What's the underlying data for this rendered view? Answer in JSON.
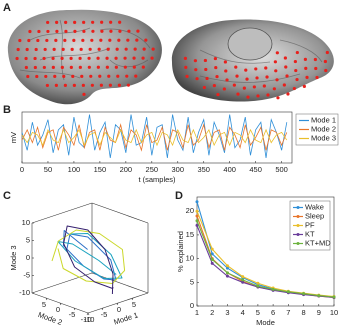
{
  "chart_data": [
    {
      "type": "image",
      "label": "A"
    },
    {
      "type": "line",
      "label": "B",
      "xlabel": "t (samples)",
      "ylabel": "mV",
      "x": [
        0,
        10,
        20,
        30,
        40,
        50,
        60,
        70,
        80,
        90,
        100,
        110,
        120,
        130,
        140,
        150,
        160,
        170,
        180,
        190,
        200,
        210,
        220,
        230,
        240,
        250,
        260,
        270,
        280,
        290,
        300,
        310,
        320,
        330,
        340,
        350,
        360,
        370,
        380,
        390,
        400,
        410,
        420,
        430,
        440,
        450,
        460,
        470,
        480,
        490,
        500,
        510
      ],
      "xlim": [
        0,
        520
      ],
      "xticks": [
        0,
        50,
        100,
        150,
        200,
        250,
        300,
        350,
        400,
        450,
        500
      ],
      "ylim": [
        -1,
        1
      ],
      "legend": "right",
      "series": [
        {
          "name": "Mode 1",
          "color": "#2f8fd8",
          "values": [
            0.2,
            -0.5,
            0.6,
            -0.3,
            0.1,
            0.7,
            -0.6,
            0.3,
            0.5,
            -0.7,
            0.8,
            -0.2,
            -0.4,
            0.9,
            -0.5,
            0.2,
            0.6,
            -0.8,
            0.5,
            0.3,
            -0.6,
            0.9,
            -0.3,
            -0.2,
            0.8,
            -0.7,
            0.4,
            0.5,
            -0.8,
            0.9,
            -0.1,
            -0.5,
            0.8,
            -0.6,
            0.2,
            0.7,
            -0.7,
            0.6,
            0.1,
            -0.6,
            0.9,
            -0.4,
            -0.1,
            0.8,
            -0.7,
            0.3,
            0.6,
            -0.8,
            0.7,
            0.2,
            -0.5,
            0.6
          ]
        },
        {
          "name": "Mode 2",
          "color": "#e8742a",
          "values": [
            -0.1,
            0.3,
            -0.2,
            0.4,
            -0.4,
            0.2,
            0.3,
            -0.5,
            0.4,
            0.1,
            -0.3,
            0.5,
            -0.4,
            0.2,
            0.3,
            -0.5,
            0.4,
            -0.1,
            -0.2,
            0.5,
            -0.4,
            0.3,
            0.1,
            -0.5,
            0.5,
            -0.2,
            -0.1,
            0.4,
            -0.5,
            0.3,
            0.2,
            -0.4,
            0.5,
            -0.3,
            -0.1,
            0.5,
            -0.4,
            0.2,
            0.3,
            -0.5,
            0.4,
            0.1,
            -0.4,
            0.5,
            -0.3,
            0.0,
            0.4,
            -0.5,
            0.3,
            0.2,
            -0.3,
            0.2
          ]
        },
        {
          "name": "Mode 3",
          "color": "#e9bf2b",
          "values": [
            0.1,
            -0.2,
            0.2,
            0.1,
            -0.3,
            0.3,
            -0.1,
            -0.2,
            0.3,
            -0.2,
            0.0,
            0.3,
            -0.3,
            0.1,
            0.2,
            -0.3,
            0.2,
            0.0,
            -0.2,
            0.3,
            -0.1,
            -0.2,
            0.3,
            -0.2,
            0.1,
            0.2,
            -0.3,
            0.2,
            0.1,
            -0.3,
            0.3,
            -0.1,
            -0.2,
            0.3,
            -0.2,
            0.0,
            0.3,
            -0.3,
            0.1,
            0.2,
            -0.3,
            0.2,
            0.1,
            -0.2,
            0.3,
            -0.1,
            -0.2,
            0.3,
            -0.2,
            0.1,
            0.2,
            -0.1
          ]
        }
      ]
    },
    {
      "type": "line3d",
      "label": "C",
      "xlabel": "Mode 1",
      "ylabel": "Mode 2",
      "zlabel": "Mode 3",
      "xlim": [
        -10,
        10
      ],
      "ylim": [
        -10,
        10
      ],
      "zlim": [
        -10,
        10
      ],
      "xticks": [
        -10,
        -5,
        0,
        5
      ],
      "yticks": [
        -10,
        -5,
        0,
        5
      ],
      "zticks": [
        -10,
        -5,
        0,
        5,
        10
      ],
      "series": [
        {
          "color": "#2b6fc7",
          "x": [
            -6,
            -2,
            3,
            6,
            4,
            -1,
            -5,
            -7,
            -3,
            2
          ],
          "y": [
            2,
            5,
            4,
            -1,
            -5,
            -6,
            -3,
            2,
            6,
            3
          ],
          "z": [
            3,
            6,
            4,
            -2,
            -6,
            -4,
            0,
            5,
            7,
            1
          ]
        },
        {
          "color": "#1aa3c0",
          "x": [
            5,
            2,
            -3,
            -6,
            -4,
            1,
            6,
            7,
            3,
            -2
          ],
          "y": [
            -4,
            -1,
            3,
            5,
            1,
            -4,
            -5,
            0,
            4,
            5
          ],
          "z": [
            -5,
            -1,
            4,
            5,
            0,
            -5,
            -6,
            -1,
            5,
            6
          ]
        },
        {
          "color": "#cbd82a",
          "x": [
            -8,
            -4,
            1,
            5,
            8,
            5,
            0,
            -5,
            -8,
            -6
          ],
          "y": [
            5,
            7,
            6,
            2,
            -3,
            -7,
            -8,
            -4,
            1,
            5
          ],
          "z": [
            0,
            4,
            6,
            5,
            1,
            -3,
            -5,
            -4,
            -1,
            3
          ]
        },
        {
          "color": "#35206e",
          "x": [
            0,
            3,
            5,
            3,
            -2,
            -6,
            -7,
            -4,
            1,
            5
          ],
          "y": [
            -8,
            -5,
            0,
            4,
            6,
            3,
            -2,
            -6,
            -7,
            -3
          ],
          "z": [
            -8,
            -4,
            1,
            6,
            8,
            5,
            0,
            -4,
            -7,
            -9
          ]
        }
      ]
    },
    {
      "type": "line",
      "label": "D",
      "xlabel": "Mode",
      "ylabel": "% explained",
      "x": [
        1,
        2,
        3,
        4,
        5,
        6,
        7,
        8,
        9,
        10
      ],
      "xlim": [
        1,
        10
      ],
      "xticks": [
        1,
        2,
        3,
        4,
        5,
        6,
        7,
        8,
        9,
        10
      ],
      "ylim": [
        0,
        23
      ],
      "yticks": [
        0,
        5,
        10,
        15,
        20
      ],
      "legend": "top-right",
      "markers": true,
      "series": [
        {
          "name": "Wake",
          "color": "#2f8fd8",
          "values": [
            22,
            11,
            8,
            6,
            4.5,
            3.6,
            3,
            2.6,
            2.2,
            1.9
          ]
        },
        {
          "name": "Sleep",
          "color": "#e8742a",
          "values": [
            19,
            10,
            7,
            5.2,
            4,
            3.4,
            2.9,
            2.5,
            2.1,
            1.8
          ]
        },
        {
          "name": "PF",
          "color": "#e9bf2b",
          "values": [
            20,
            12,
            8.5,
            6.2,
            4.8,
            3.8,
            3.1,
            2.7,
            2.3,
            2
          ]
        },
        {
          "name": "KT",
          "color": "#6a3d9a",
          "values": [
            17,
            9,
            6.3,
            5,
            4,
            3.3,
            2.8,
            2.4,
            2.1,
            1.8
          ]
        },
        {
          "name": "KT+MD",
          "color": "#6db33f",
          "values": [
            18,
            9.8,
            7,
            5.5,
            4.2,
            3.5,
            3,
            2.6,
            2.2,
            1.9
          ]
        }
      ]
    }
  ]
}
